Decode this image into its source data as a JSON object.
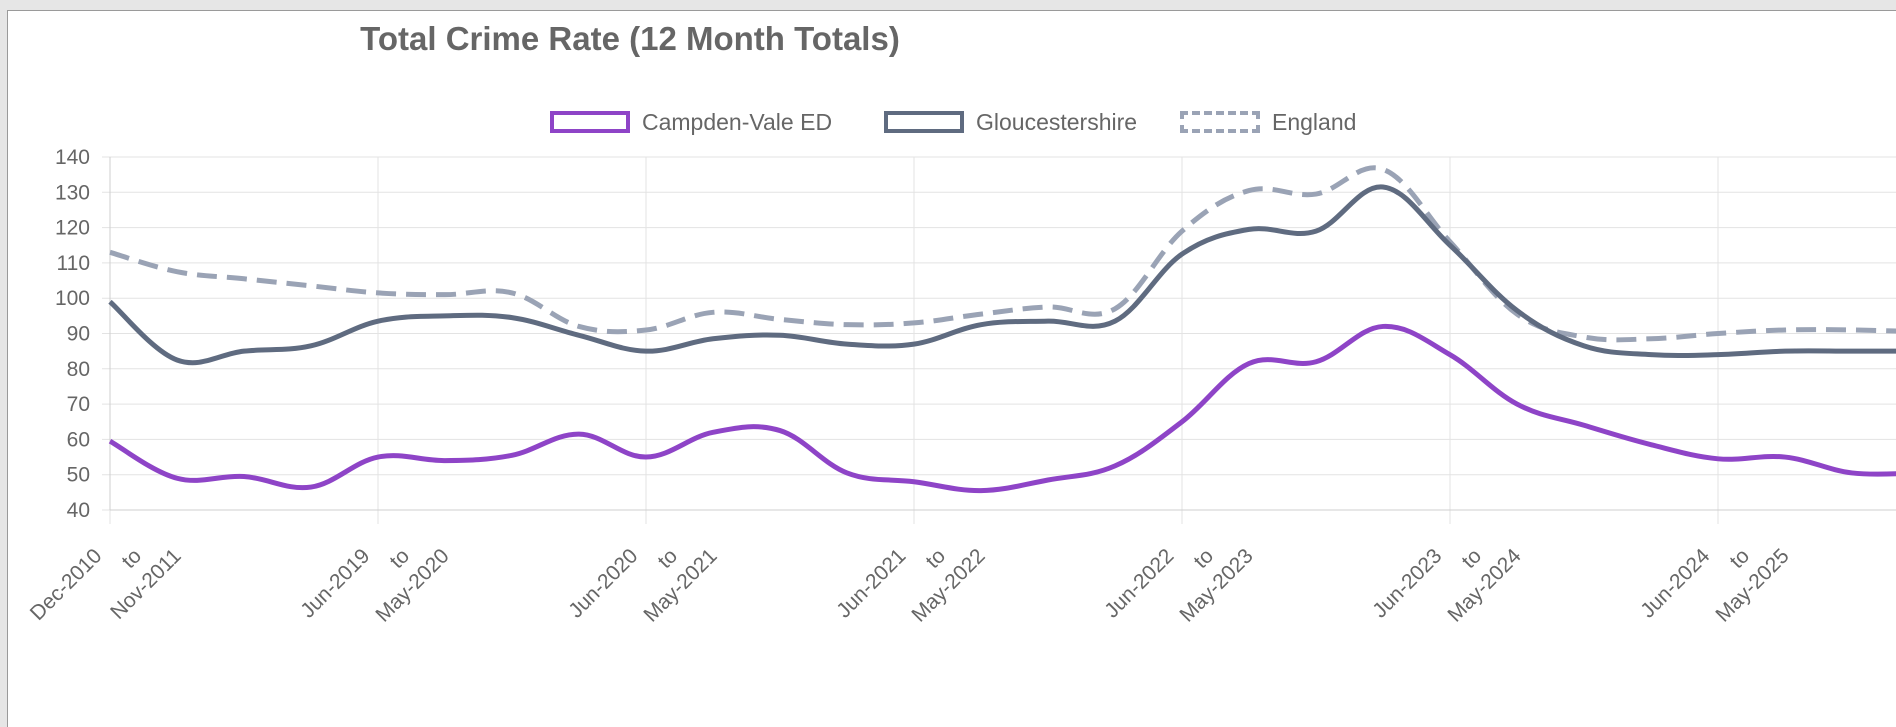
{
  "chart_data": {
    "type": "line",
    "title": "Total Crime Rate (12 Month Totals)",
    "xlabel": "",
    "ylabel": "",
    "ylim": [
      40,
      140
    ],
    "yticks": [
      40,
      50,
      60,
      70,
      80,
      90,
      100,
      110,
      120,
      130,
      140
    ],
    "grid": true,
    "legend_position": "top",
    "x_tick_labels": [
      [
        "Dec-2010",
        "to",
        "Nov-2011"
      ],
      [
        "Jun-2019",
        "to",
        "May-2020"
      ],
      [
        "Jun-2020",
        "to",
        "May-2021"
      ],
      [
        "Jun-2021",
        "to",
        "May-2022"
      ],
      [
        "Jun-2022",
        "to",
        "May-2023"
      ],
      [
        "Jun-2023",
        "to",
        "May-2024"
      ],
      [
        "Jun-2024",
        "to",
        "May-2025"
      ]
    ],
    "x_tick_index": [
      0,
      4,
      8,
      12,
      16,
      20,
      24
    ],
    "series": [
      {
        "name": "Campden-Vale ED",
        "color": "#8e44c7",
        "dash": false,
        "values": [
          59.5,
          49,
          49.5,
          46.5,
          55,
          54,
          55.5,
          61.5,
          55,
          62,
          62.5,
          50.5,
          48,
          45.5,
          48.5,
          52.5,
          65,
          81.5,
          82,
          92,
          84,
          70,
          64,
          58.5,
          54.5,
          55,
          50.5,
          50.5
        ]
      },
      {
        "name": "Gloucestershire",
        "color": "#5f6b80",
        "dash": false,
        "values": [
          99,
          82.5,
          85,
          86.5,
          93.5,
          95,
          94.5,
          89.5,
          85,
          88.5,
          89.5,
          87,
          87,
          92.5,
          93.5,
          93.5,
          112.5,
          119.5,
          119,
          131.5,
          115,
          96.5,
          86.5,
          84,
          84,
          85,
          85,
          85
        ]
      },
      {
        "name": "England",
        "color": "#9aa3b5",
        "dash": true,
        "values": [
          113,
          107.5,
          105.5,
          103.5,
          101.5,
          101,
          101.5,
          92,
          91,
          96,
          94,
          92.5,
          93,
          95.5,
          97.5,
          97,
          119,
          130.5,
          129.5,
          136.5,
          116,
          95.5,
          89,
          88.5,
          90,
          91,
          91,
          90.5
        ]
      }
    ]
  }
}
